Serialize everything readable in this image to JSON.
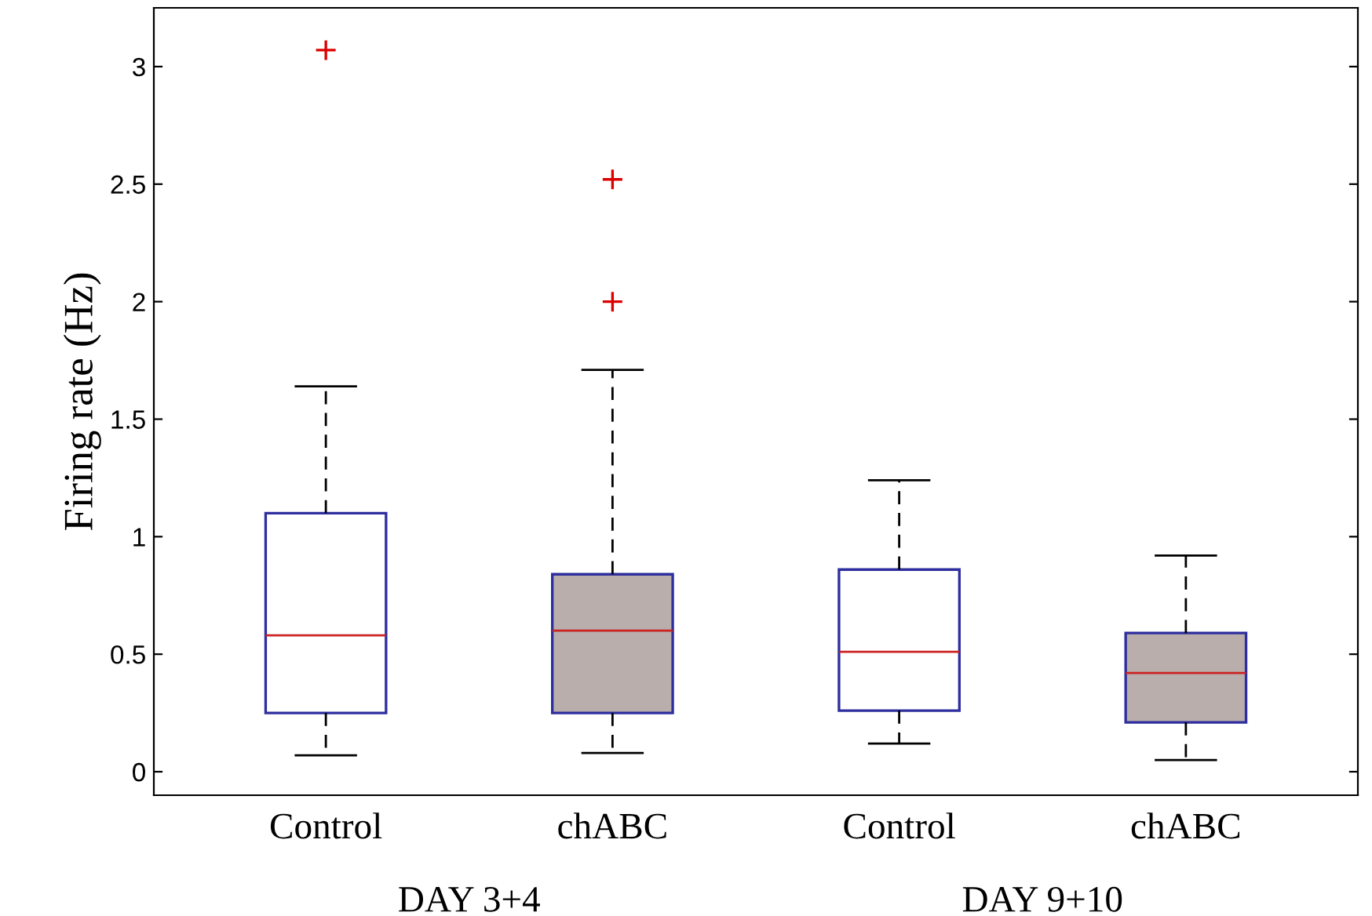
{
  "chart_data": {
    "type": "box",
    "ylabel": "Firing rate (Hz)",
    "categories": [
      "Control",
      "chABC",
      "Control",
      "chABC"
    ],
    "annotations": [
      "DAY 3+4",
      "DAY 9+10"
    ],
    "colors": [
      "#ffffff",
      "#b9aeab",
      "#ffffff",
      "#b9aeab"
    ],
    "boxes": [
      {
        "low": 0.07,
        "q1": 0.25,
        "median": 0.58,
        "q3": 1.1,
        "high": 1.64,
        "outliers": [
          3.07
        ]
      },
      {
        "low": 0.08,
        "q1": 0.25,
        "median": 0.6,
        "q3": 0.84,
        "high": 1.71,
        "outliers": [
          2.52,
          2.0
        ]
      },
      {
        "low": 0.12,
        "q1": 0.26,
        "median": 0.51,
        "q3": 0.86,
        "high": 1.24
      },
      {
        "low": 0.05,
        "q1": 0.21,
        "median": 0.42,
        "q3": 0.59,
        "high": 0.92
      }
    ],
    "ylim": [
      -0.1,
      3.25
    ],
    "yticks": [
      0,
      0.5,
      1,
      1.5,
      2,
      2.5,
      3
    ],
    "grid": false
  }
}
